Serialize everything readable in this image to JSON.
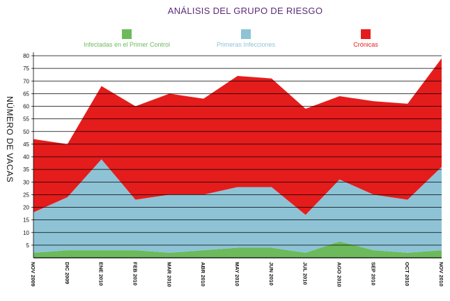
{
  "chart_data": {
    "type": "area",
    "stacked": true,
    "title": "ANÁLISIS DEL GRUPO DE RIESGO",
    "ylabel": "NÚMERO DE VACAS",
    "xlabel": "",
    "ylim": [
      0,
      80
    ],
    "yticks": [
      5,
      10,
      15,
      20,
      25,
      30,
      35,
      40,
      45,
      50,
      55,
      60,
      65,
      70,
      75,
      80
    ],
    "grid": true,
    "legend_position": "top",
    "categories": [
      "NOV 2009",
      "DIC 2009",
      "ENE 2010",
      "FEB 2010",
      "MAR 2010",
      "ABR 2010",
      "MAY 2010",
      "JUN 2010",
      "JUL 2010",
      "AGO 2010",
      "SEP 2010",
      "OCT 2010",
      "NOV 2010"
    ],
    "series": [
      {
        "name": "Infectadas en el Primer Control",
        "color": "#6cba5c",
        "values": [
          2,
          3,
          3,
          3,
          2,
          3,
          4,
          4,
          2,
          6.5,
          3,
          2,
          3
        ]
      },
      {
        "name": "Primeras Infecciones",
        "color": "#8ec3d6",
        "values": [
          16,
          21,
          36,
          20,
          23,
          22,
          24,
          24,
          15,
          24.5,
          22,
          21,
          33
        ]
      },
      {
        "name": "Crónicas",
        "color": "#e51c1c",
        "values": [
          29,
          21,
          29,
          37,
          40,
          38,
          44,
          43,
          42,
          33,
          37,
          38,
          43
        ]
      }
    ]
  }
}
